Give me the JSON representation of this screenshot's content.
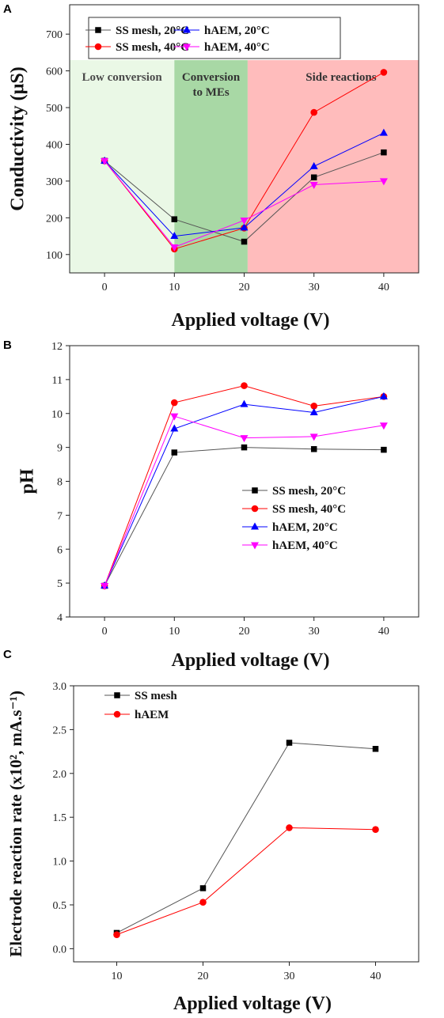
{
  "chart_data": [
    {
      "panel": "A",
      "type": "line",
      "xlabel": "Applied voltage (V)",
      "ylabel": "Conductivity (µS)",
      "xlim": [
        -5,
        45
      ],
      "ylim": [
        50,
        780
      ],
      "xticks": [
        0,
        10,
        20,
        30,
        40
      ],
      "yticks": [
        100,
        200,
        300,
        400,
        500,
        600,
        700
      ],
      "x": [
        0,
        10,
        20,
        30,
        40
      ],
      "regions": [
        {
          "label": "Low conversion",
          "from": -5,
          "to": 10,
          "color": "#eaf8e6"
        },
        {
          "label": "Conversion to MEs",
          "from": 10,
          "to": 20.5,
          "color": "#a8d8a5"
        },
        {
          "label": "Side reactions",
          "from": 20.5,
          "to": 45,
          "color": "#ffbcbc"
        }
      ],
      "legend_position": "top",
      "series": [
        {
          "name": "SS mesh, 20°C",
          "values": [
            355,
            196,
            135,
            310,
            378
          ],
          "color": "#000000",
          "line": "#555555",
          "marker": "square"
        },
        {
          "name": "SS mesh, 40°C",
          "values": [
            355,
            115,
            172,
            487,
            596
          ],
          "color": "#ff0000",
          "line": "#ff0000",
          "marker": "circle"
        },
        {
          "name": "hAEM, 20°C",
          "values": [
            355,
            150,
            173,
            340,
            431
          ],
          "color": "#0000ff",
          "line": "#0000ff",
          "marker": "triangle-up"
        },
        {
          "name": "hAEM, 40°C",
          "values": [
            355,
            120,
            193,
            290,
            300
          ],
          "color": "#ff00ff",
          "line": "#ff00ff",
          "marker": "triangle-down"
        }
      ]
    },
    {
      "panel": "B",
      "type": "line",
      "xlabel": "Applied voltage (V)",
      "ylabel": "pH",
      "xlim": [
        -5,
        45
      ],
      "ylim": [
        4,
        12
      ],
      "xticks": [
        0,
        10,
        20,
        30,
        40
      ],
      "yticks": [
        4,
        5,
        6,
        7,
        8,
        9,
        10,
        11,
        12
      ],
      "x": [
        0,
        10,
        20,
        30,
        40
      ],
      "legend_position": "lower-right",
      "series": [
        {
          "name": "SS mesh, 20°C",
          "values": [
            4.92,
            8.85,
            9.0,
            8.95,
            8.93
          ],
          "color": "#000000",
          "line": "#555555",
          "marker": "square"
        },
        {
          "name": "SS mesh, 40°C",
          "values": [
            4.92,
            10.32,
            10.82,
            10.22,
            10.5
          ],
          "color": "#ff0000",
          "line": "#ff0000",
          "marker": "circle"
        },
        {
          "name": "hAEM, 20°C",
          "values": [
            4.92,
            9.55,
            10.27,
            10.03,
            10.5
          ],
          "color": "#0000ff",
          "line": "#0000ff",
          "marker": "triangle-up"
        },
        {
          "name": "hAEM, 40°C",
          "values": [
            4.92,
            9.92,
            9.28,
            9.32,
            9.65
          ],
          "color": "#ff00ff",
          "line": "#ff00ff",
          "marker": "triangle-down"
        }
      ]
    },
    {
      "panel": "C",
      "type": "line",
      "xlabel": "Applied voltage (V)",
      "ylabel": "Electrode reaction rate (x10², mA.s⁻¹)",
      "xlim": [
        5,
        45
      ],
      "ylim": [
        -0.15,
        3.0
      ],
      "xticks": [
        10,
        20,
        30,
        40
      ],
      "yticks": [
        "0.0",
        "0.5",
        "1.0",
        "1.5",
        "2.0",
        "2.5",
        "3.0"
      ],
      "x": [
        10,
        20,
        30,
        40
      ],
      "legend_position": "top-left",
      "series": [
        {
          "name": "SS mesh",
          "values": [
            0.18,
            0.69,
            2.35,
            2.28
          ],
          "color": "#000000",
          "line": "#555555",
          "marker": "square"
        },
        {
          "name": "hAEM",
          "values": [
            0.16,
            0.53,
            1.38,
            1.36
          ],
          "color": "#ff0000",
          "line": "#ff0000",
          "marker": "circle"
        }
      ]
    }
  ]
}
